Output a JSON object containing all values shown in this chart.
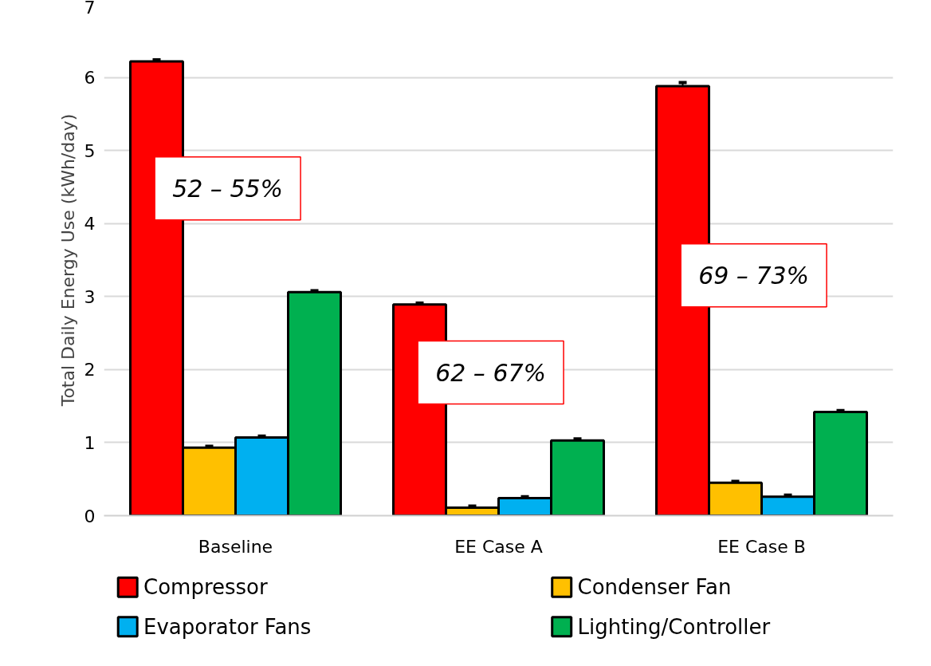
{
  "chart_data": {
    "type": "bar",
    "ylabel": "Total Daily Energy Use (kWh/day)",
    "categories": [
      "Baseline",
      "EE Case A",
      "EE Case B"
    ],
    "series": [
      {
        "name": "Compressor",
        "color": "#ff0000",
        "values": [
          6.22,
          2.89,
          5.88
        ],
        "errors": [
          0.02,
          0.02,
          0.05
        ]
      },
      {
        "name": "Condenser Fan",
        "color": "#ffc000",
        "values": [
          0.93,
          0.11,
          0.45
        ],
        "errors": [
          0.02,
          0.02,
          0.02
        ]
      },
      {
        "name": "Evaporator Fans",
        "color": "#00b0f0",
        "values": [
          1.07,
          0.24,
          0.26
        ],
        "errors": [
          0.02,
          0.02,
          0.02
        ]
      },
      {
        "name": "Lighting/Controller",
        "color": "#00b050",
        "values": [
          3.06,
          1.03,
          1.42
        ],
        "errors": [
          0.02,
          0.02,
          0.02
        ]
      }
    ],
    "annotations": [
      "52 – 55%",
      "62 – 67%",
      "69 – 73%"
    ],
    "ylim": [
      0,
      7
    ],
    "yticks": [
      0,
      1,
      2,
      3,
      4,
      5,
      6,
      7
    ],
    "grid": "y",
    "legend": "bottom"
  }
}
